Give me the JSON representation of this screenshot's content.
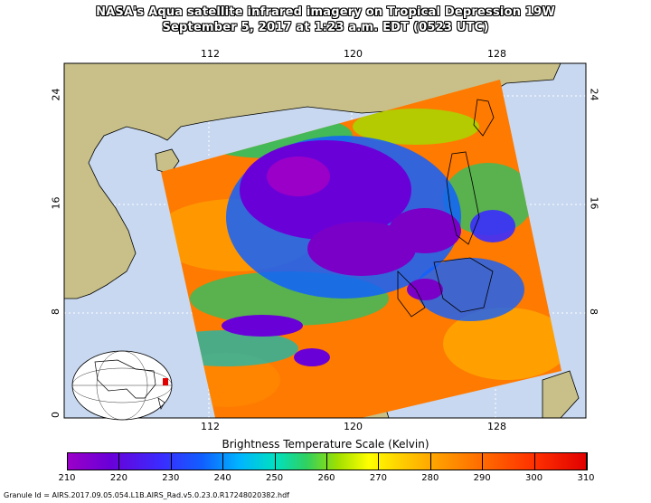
{
  "title_line1": "NASA's Aqua satellite infrared imagery on Tropical Depression 19W",
  "title_line2": "September 5, 2017 at 1:23 a.m. EDT (0523 UTC)",
  "longitude_ticks": [
    "112",
    "120",
    "128"
  ],
  "latitude_ticks": [
    "0",
    "8",
    "16",
    "24"
  ],
  "scale": {
    "title": "Brightness Temperature Scale (Kelvin)",
    "labels": [
      "210",
      "220",
      "230",
      "240",
      "250",
      "260",
      "270",
      "280",
      "290",
      "300",
      "310"
    ],
    "min": 210,
    "max": 310,
    "colors": [
      "#9b00c8",
      "#3a2cff",
      "#00b4ff",
      "#30d060",
      "#ffff00",
      "#ff9a00",
      "#ff3000",
      "#e00000"
    ]
  },
  "granule": "Granule Id = AIRS.2017.09.05.054.L1B.AIRS_Rad.v5.0.23.0.R17248020382.hdf",
  "colors": {
    "land": "#c8c088",
    "ocean": "#c8d8f0",
    "cold_cloud": "#7a00c8",
    "warm_sea": "#ff7a00"
  }
}
